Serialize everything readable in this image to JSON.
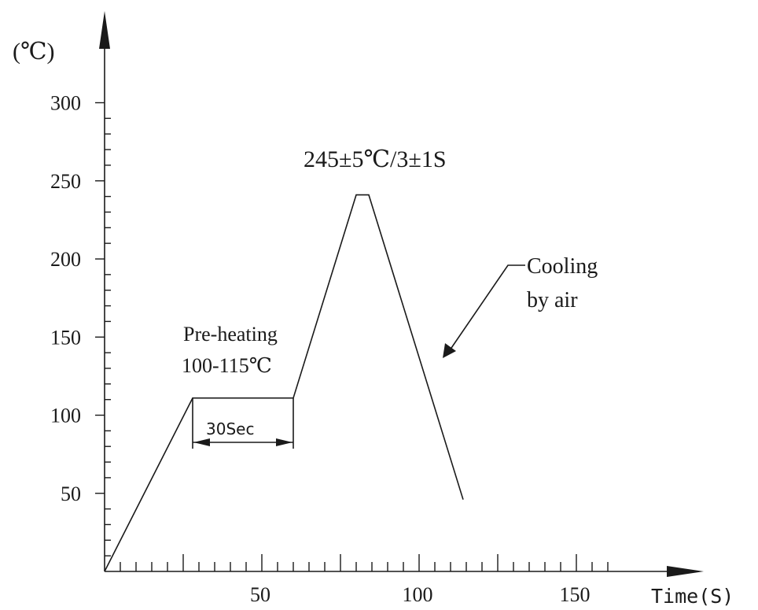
{
  "chart_data": {
    "type": "line",
    "ylabel": "(℃)",
    "xlabel": "Time(S)",
    "xlim": [
      0,
      150
    ],
    "ylim": [
      0,
      300
    ],
    "x_ticks": [
      50,
      100,
      150
    ],
    "y_ticks": [
      50,
      100,
      150,
      200,
      250,
      300
    ],
    "grid": false,
    "series": [
      {
        "points": [
          {
            "x": 0,
            "y": 0
          },
          {
            "x": 28,
            "y": 111
          },
          {
            "x": 60,
            "y": 111
          },
          {
            "x": 80,
            "y": 241
          },
          {
            "x": 84,
            "y": 241
          },
          {
            "x": 114,
            "y": 46
          }
        ]
      }
    ],
    "annotations": {
      "peak": "245±5℃/3±1S",
      "preheat_line1": "Pre-heating",
      "preheat_line2": "100-115℃",
      "duration": "30Sec",
      "cooling_line1": "Cooling",
      "cooling_line2": "by air"
    }
  }
}
